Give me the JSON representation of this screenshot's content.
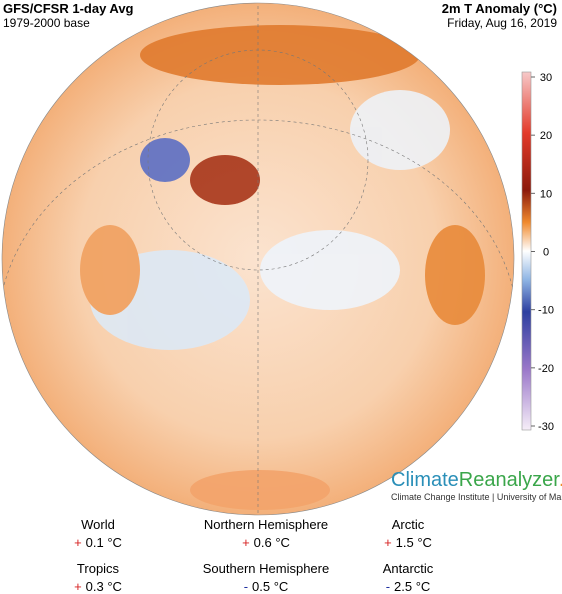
{
  "header": {
    "title": "GFS/CFSR 1-day Avg",
    "subtitle": "1979-2000 base",
    "variable": "2m T Anomaly (°C)",
    "date": "Friday, Aug 16, 2019"
  },
  "colorbar": {
    "range": [
      -30,
      30
    ],
    "ticks": [
      30,
      20,
      10,
      0,
      -10,
      -20,
      -30
    ]
  },
  "logo": {
    "part1": "Climate",
    "part2": "Reanalyzer",
    ".org": ".org",
    "credit": "Climate Change Institute | University of Maine"
  },
  "stats": [
    {
      "name": "World",
      "sign": "+",
      "value": "0.1 °C"
    },
    {
      "name": "Northern Hemisphere",
      "sign": "+",
      "value": "0.6 °C"
    },
    {
      "name": "Arctic",
      "sign": "+",
      "value": "1.5 °C"
    },
    {
      "name": "Tropics",
      "sign": "+",
      "value": "0.3 °C"
    },
    {
      "name": "Southern Hemisphere",
      "sign": "-",
      "value": "0.5 °C"
    },
    {
      "name": "Antarctic",
      "sign": "-",
      "value": "2.5 °C"
    }
  ]
}
